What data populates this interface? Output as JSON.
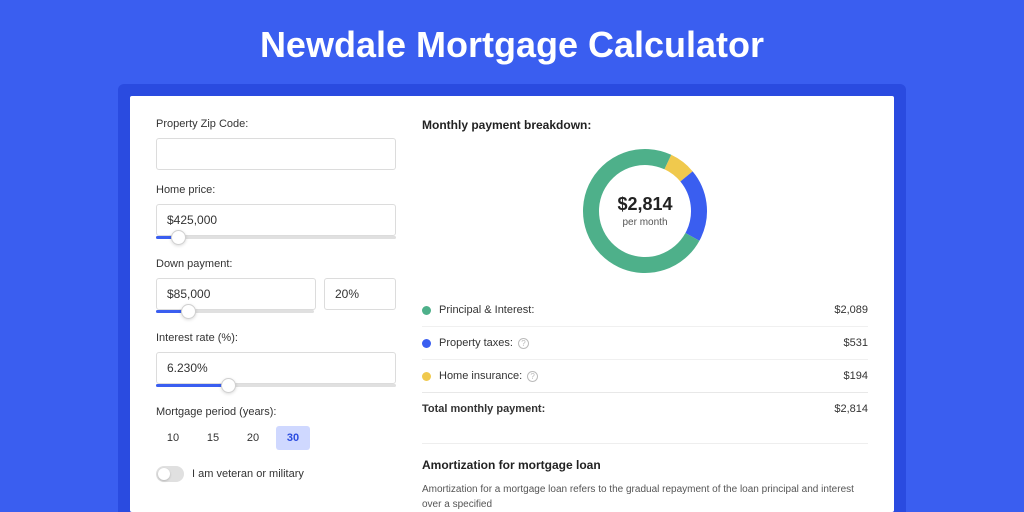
{
  "page": {
    "title": "Newdale Mortgage Calculator",
    "background_color": "#3a5ef0",
    "card_header_color": "#2a4be0",
    "card_bg": "#ffffff"
  },
  "form": {
    "zip_label": "Property Zip Code:",
    "zip_value": "",
    "home_price_label": "Home price:",
    "home_price_value": "$425,000",
    "home_price_slider_pct": 9,
    "down_payment_label": "Down payment:",
    "down_payment_value": "$85,000",
    "down_payment_pct": "20%",
    "down_payment_slider_pct": 20,
    "interest_label": "Interest rate (%):",
    "interest_value": "6.230%",
    "interest_slider_pct": 30,
    "period_label": "Mortgage period (years):",
    "periods": [
      "10",
      "15",
      "20",
      "30"
    ],
    "period_selected_index": 3,
    "veteran_label": "I am veteran or military",
    "veteran_on": false
  },
  "breakdown": {
    "title": "Monthly payment breakdown:",
    "center_amount": "$2,814",
    "center_sub": "per month",
    "items": [
      {
        "label": "Principal & Interest:",
        "amount": "$2,089",
        "color": "#4eb08a",
        "has_info": false,
        "pct": 74
      },
      {
        "label": "Property taxes:",
        "amount": "$531",
        "color": "#3a5ef0",
        "has_info": true,
        "pct": 19
      },
      {
        "label": "Home insurance:",
        "amount": "$194",
        "color": "#f0c94d",
        "has_info": true,
        "pct": 7
      }
    ],
    "total_label": "Total monthly payment:",
    "total_amount": "$2,814",
    "donut": {
      "background_color": "#ffffff",
      "stroke_width": 16,
      "radius": 54
    }
  },
  "amortization": {
    "title": "Amortization for mortgage loan",
    "text": "Amortization for a mortgage loan refers to the gradual repayment of the loan principal and interest over a specified"
  }
}
